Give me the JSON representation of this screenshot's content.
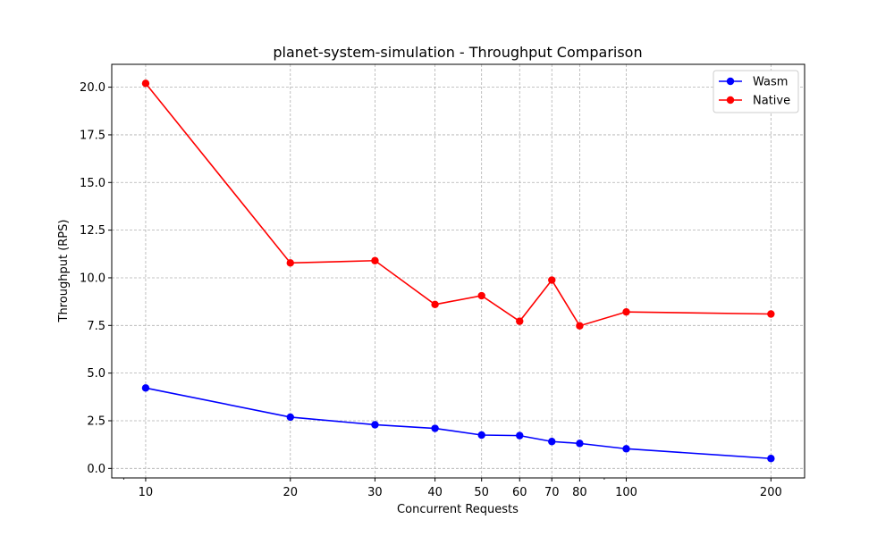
{
  "chart_data": {
    "type": "line",
    "title": "planet-system-simulation - Throughput Comparison",
    "xlabel": "Concurrent Requests",
    "ylabel": "Throughput (RPS)",
    "x_scale": "log",
    "x": [
      10,
      20,
      30,
      40,
      50,
      60,
      70,
      80,
      100,
      200
    ],
    "x_tick_labels": [
      "10",
      "20",
      "30",
      "40",
      "50",
      "60",
      "70",
      "80",
      "100",
      "200"
    ],
    "xlim": [
      8.5,
      235
    ],
    "ylim": [
      -0.5,
      21.2
    ],
    "y_ticks": [
      0.0,
      2.5,
      5.0,
      7.5,
      10.0,
      12.5,
      15.0,
      17.5,
      20.0
    ],
    "y_tick_labels": [
      "0.0",
      "2.5",
      "5.0",
      "7.5",
      "10.0",
      "12.5",
      "15.0",
      "17.5",
      "20.0"
    ],
    "grid": true,
    "legend_position": "top-right",
    "series": [
      {
        "name": "Wasm",
        "color": "#0000ff",
        "values": [
          4.22,
          2.69,
          2.29,
          2.1,
          1.75,
          1.72,
          1.41,
          1.31,
          1.03,
          0.52
        ]
      },
      {
        "name": "Native",
        "color": "#ff0000",
        "values": [
          20.2,
          10.78,
          10.9,
          8.6,
          9.06,
          7.72,
          9.88,
          7.48,
          8.21,
          8.1
        ]
      }
    ]
  }
}
